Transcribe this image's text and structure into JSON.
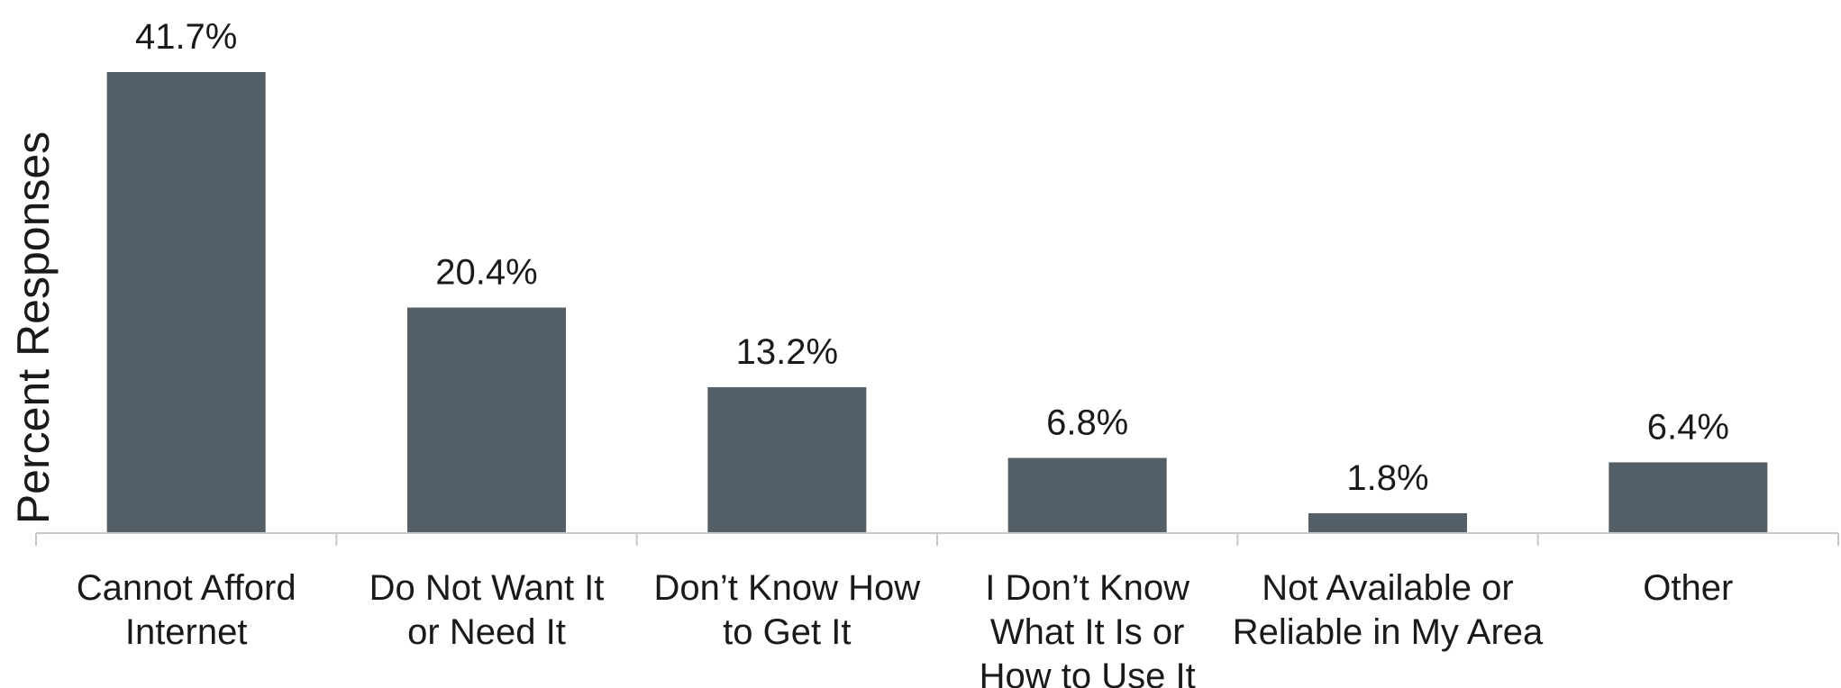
{
  "chart_data": {
    "type": "bar",
    "ylabel": "Percent Responses",
    "xlabel": "",
    "categories": [
      [
        "Cannot Afford",
        "Internet"
      ],
      [
        "Do Not Want It",
        "or Need It"
      ],
      [
        "Don’t Know How",
        "to Get It"
      ],
      [
        "I Don’t Know",
        "What It Is or",
        "How to Use It"
      ],
      [
        "Not Available or",
        "Reliable in My Area"
      ],
      [
        "Other"
      ]
    ],
    "values": [
      41.7,
      20.4,
      13.2,
      6.8,
      1.8,
      6.4
    ],
    "value_labels": [
      "41.7%",
      "20.4%",
      "13.2%",
      "6.8%",
      "1.8%",
      "6.4%"
    ],
    "ylim": [
      0,
      41.7
    ],
    "grid": false,
    "bar_color": "#545f67",
    "axis_color": "#c8c8c8"
  }
}
